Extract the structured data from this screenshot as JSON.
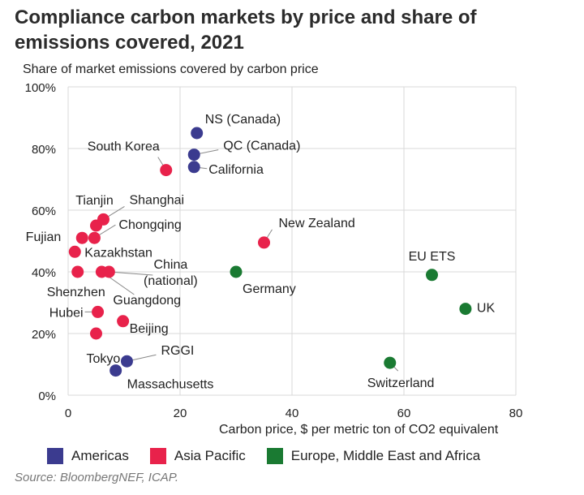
{
  "chart_data": {
    "type": "scatter",
    "title": "Compliance carbon markets by price and share of emissions covered, 2021",
    "ylabel": "Share of market emissions covered by carbon price",
    "xlabel": "Carbon price, $ per metric ton of CO2 equivalent",
    "xlim": [
      0,
      80
    ],
    "ylim": [
      0,
      100
    ],
    "x_ticks": [
      0,
      20,
      40,
      60,
      80
    ],
    "y_ticks": [
      0,
      20,
      40,
      60,
      80,
      100
    ],
    "x_tick_labels": [
      "0",
      "20",
      "40",
      "60",
      "80"
    ],
    "y_tick_labels": [
      "0%",
      "20%",
      "40%",
      "60%",
      "80%",
      "100%"
    ],
    "grid": true,
    "legend_position": "bottom",
    "source": "Source: BloombergNEF, ICAP.",
    "series": [
      {
        "name": "Americas",
        "color": "#3b3b8f",
        "points": [
          {
            "label": "NS (Canada)",
            "x": 23.0,
            "y": 85
          },
          {
            "label": "QC (Canada)",
            "x": 22.5,
            "y": 78
          },
          {
            "label": "California",
            "x": 22.5,
            "y": 74
          },
          {
            "label": "RGGI",
            "x": 10.5,
            "y": 11
          },
          {
            "label": "Massachusetts",
            "x": 8.5,
            "y": 8
          }
        ]
      },
      {
        "name": "Asia Pacific",
        "color": "#e8224b",
        "points": [
          {
            "label": "South Korea",
            "x": 17.5,
            "y": 73
          },
          {
            "label": "New Zealand",
            "x": 35.0,
            "y": 49.5
          },
          {
            "label": "Tianjin",
            "x": 5.0,
            "y": 55
          },
          {
            "label": "Shanghai",
            "x": 6.3,
            "y": 57
          },
          {
            "label": "Fujian",
            "x": 2.5,
            "y": 51
          },
          {
            "label": "Chongqing",
            "x": 4.7,
            "y": 51
          },
          {
            "label": "Kazakhstan",
            "x": 1.2,
            "y": 46.5
          },
          {
            "label": "Shenzhen",
            "x": 1.7,
            "y": 40
          },
          {
            "label": "Guangdong",
            "x": 6.0,
            "y": 40
          },
          {
            "label": "China (national)",
            "x": 7.3,
            "y": 40
          },
          {
            "label": "Hubei",
            "x": 5.3,
            "y": 27
          },
          {
            "label": "Beijing",
            "x": 9.8,
            "y": 24
          },
          {
            "label": "Tokyo",
            "x": 5.0,
            "y": 20
          }
        ]
      },
      {
        "name": "Europe, Middle East and Africa",
        "color": "#1a7a32",
        "points": [
          {
            "label": "Germany",
            "x": 30.0,
            "y": 40
          },
          {
            "label": "EU ETS",
            "x": 65.0,
            "y": 39
          },
          {
            "label": "UK",
            "x": 71.0,
            "y": 28
          },
          {
            "label": "Switzerland",
            "x": 57.5,
            "y": 10.5
          }
        ]
      }
    ]
  }
}
